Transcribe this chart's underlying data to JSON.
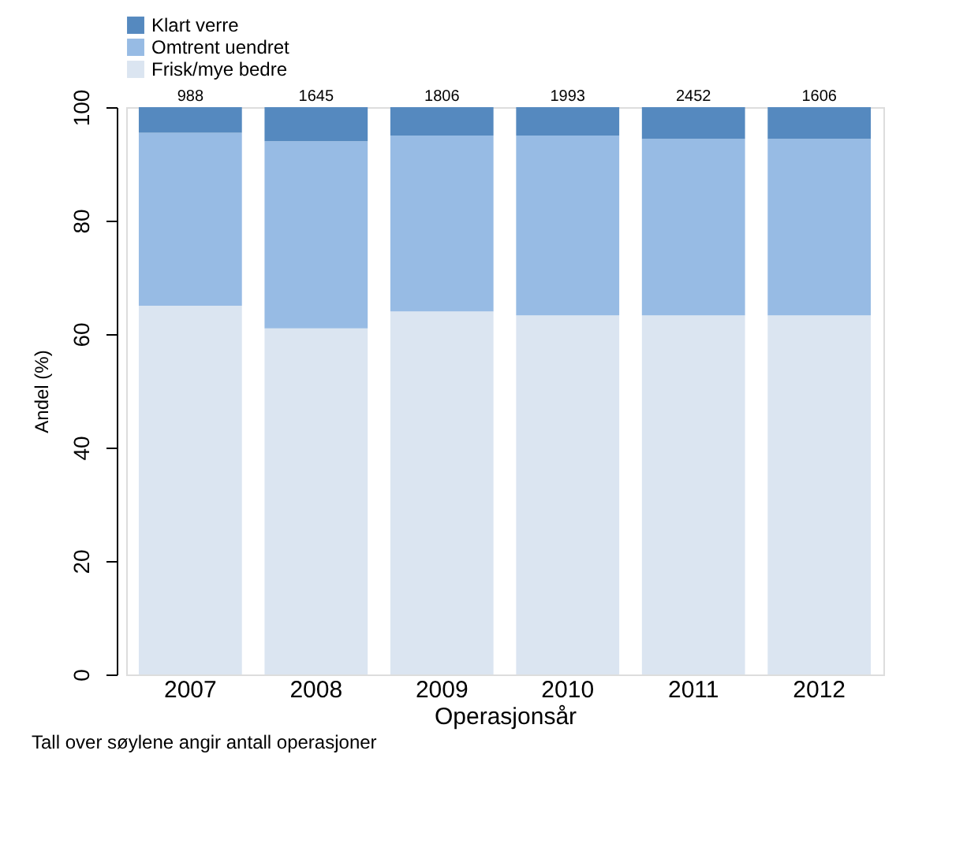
{
  "chart_data": {
    "type": "bar",
    "stacked": true,
    "xlabel": "Operasjonsår",
    "ylabel": "Andel (%)",
    "categories": [
      "2007",
      "2008",
      "2009",
      "2010",
      "2011",
      "2012"
    ],
    "series": [
      {
        "name": "Frisk/mye bedre",
        "color": "#dbe5f1",
        "values": [
          65,
          61,
          64,
          63.3,
          63.3,
          63.3
        ]
      },
      {
        "name": "Omtrent uendret",
        "color": "#97bbe4",
        "values": [
          30.5,
          33,
          31,
          31.7,
          31.1,
          31.1
        ]
      },
      {
        "name": "Klart verre",
        "color": "#5589bf",
        "values": [
          4.5,
          6,
          5,
          5,
          5.6,
          5.6
        ]
      }
    ],
    "ylim": [
      0,
      100
    ],
    "yticks": [
      0,
      20,
      40,
      60,
      80,
      100
    ],
    "grid": false,
    "legend": "top",
    "annotations": [
      {
        "text": "988",
        "x": "2007",
        "y": 100
      },
      {
        "text": "1645",
        "x": "2008",
        "y": 100
      },
      {
        "text": "1806",
        "x": "2009",
        "y": 100
      },
      {
        "text": "1993",
        "x": "2010",
        "y": 100
      },
      {
        "text": "2452",
        "x": "2011",
        "y": 100
      },
      {
        "text": "1606",
        "x": "2012",
        "y": 100
      },
      "Tall over søylene angir antall operasjoner"
    ]
  }
}
